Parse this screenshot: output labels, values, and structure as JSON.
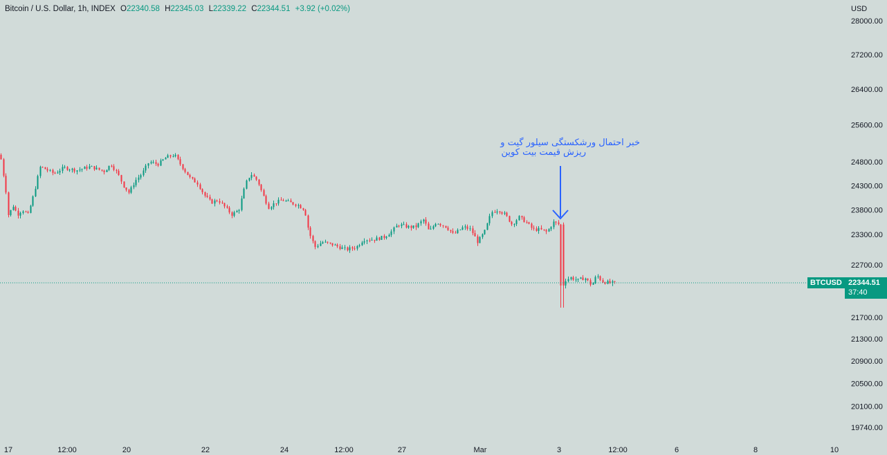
{
  "legend": {
    "symbol": "Bitcoin / U.S. Dollar, 1h, INDEX",
    "open_label": "O",
    "open": "22340.58",
    "high_label": "H",
    "high": "22345.03",
    "low_label": "L",
    "low": "22339.22",
    "close_label": "C",
    "close": "22344.51",
    "change": "+3.92 (+0.02%)"
  },
  "currency": "USD",
  "price_tag": {
    "symbol": "BTCUSD",
    "price": "22344.51",
    "countdown": "37:40"
  },
  "annotation": {
    "line1": "خبر احتمال ورشکستگی سیلور گیت و",
    "line2": "ریزش قیمت بیت کوین"
  },
  "colors": {
    "up": "#089981",
    "down": "#f23645",
    "annotation": "#2962ff",
    "background": "#d1dbd9"
  },
  "chart_data": {
    "type": "candlestick",
    "yscale": "log",
    "y_ticks": [
      "28000.00",
      "27200.00",
      "26400.00",
      "25600.00",
      "24800.00",
      "24300.00",
      "23800.00",
      "23300.00",
      "22700.00",
      "21700.00",
      "21300.00",
      "20900.00",
      "20500.00",
      "20100.00",
      "19740.00"
    ],
    "x_ticks": [
      "17",
      "12:00",
      "20",
      "22",
      "24",
      "12:00",
      "27",
      "Mar",
      "3",
      "12:00",
      "6",
      "8",
      "10"
    ],
    "last_price": 22344.51,
    "anchors": [
      [
        0,
        24950
      ],
      [
        8,
        24200
      ],
      [
        12,
        23650
      ],
      [
        18,
        23900
      ],
      [
        25,
        23700
      ],
      [
        32,
        23800
      ],
      [
        40,
        23700
      ],
      [
        48,
        24100
      ],
      [
        58,
        24700
      ],
      [
        65,
        24650
      ],
      [
        78,
        24550
      ],
      [
        92,
        24680
      ],
      [
        110,
        24620
      ],
      [
        130,
        24700
      ],
      [
        150,
        24600
      ],
      [
        160,
        24750
      ],
      [
        170,
        24550
      ],
      [
        178,
        24300
      ],
      [
        186,
        24150
      ],
      [
        195,
        24400
      ],
      [
        205,
        24550
      ],
      [
        215,
        24800
      ],
      [
        228,
        24750
      ],
      [
        240,
        24900
      ],
      [
        252,
        24950
      ],
      [
        258,
        24800
      ],
      [
        265,
        24650
      ],
      [
        275,
        24450
      ],
      [
        285,
        24350
      ],
      [
        295,
        24100
      ],
      [
        305,
        23950
      ],
      [
        315,
        24000
      ],
      [
        325,
        23850
      ],
      [
        335,
        23700
      ],
      [
        345,
        23800
      ],
      [
        355,
        24350
      ],
      [
        362,
        24550
      ],
      [
        372,
        24400
      ],
      [
        380,
        24100
      ],
      [
        388,
        23850
      ],
      [
        398,
        23950
      ],
      [
        408,
        24000
      ],
      [
        418,
        23950
      ],
      [
        430,
        23900
      ],
      [
        440,
        23800
      ],
      [
        446,
        23350
      ],
      [
        455,
        23050
      ],
      [
        465,
        23150
      ],
      [
        480,
        23100
      ],
      [
        490,
        23050
      ],
      [
        500,
        23000
      ],
      [
        515,
        23050
      ],
      [
        525,
        23200
      ],
      [
        540,
        23200
      ],
      [
        555,
        23250
      ],
      [
        565,
        23350
      ],
      [
        575,
        23500
      ],
      [
        590,
        23450
      ],
      [
        600,
        23450
      ],
      [
        612,
        23600
      ],
      [
        620,
        23350
      ],
      [
        630,
        23550
      ],
      [
        645,
        23450
      ],
      [
        655,
        23300
      ],
      [
        670,
        23450
      ],
      [
        680,
        23400
      ],
      [
        690,
        23150
      ],
      [
        700,
        23350
      ],
      [
        710,
        23750
      ],
      [
        720,
        23800
      ],
      [
        730,
        23700
      ],
      [
        740,
        23500
      ],
      [
        750,
        23650
      ],
      [
        760,
        23550
      ],
      [
        770,
        23400
      ],
      [
        780,
        23400
      ],
      [
        790,
        23350
      ],
      [
        800,
        23550
      ],
      [
        808,
        23500
      ],
      [
        810,
        22050
      ],
      [
        815,
        22400
      ],
      [
        825,
        22450
      ],
      [
        835,
        22400
      ],
      [
        845,
        22450
      ],
      [
        855,
        22300
      ],
      [
        862,
        22500
      ],
      [
        870,
        22380
      ],
      [
        880,
        22350
      ],
      [
        890,
        22344.51
      ]
    ]
  }
}
